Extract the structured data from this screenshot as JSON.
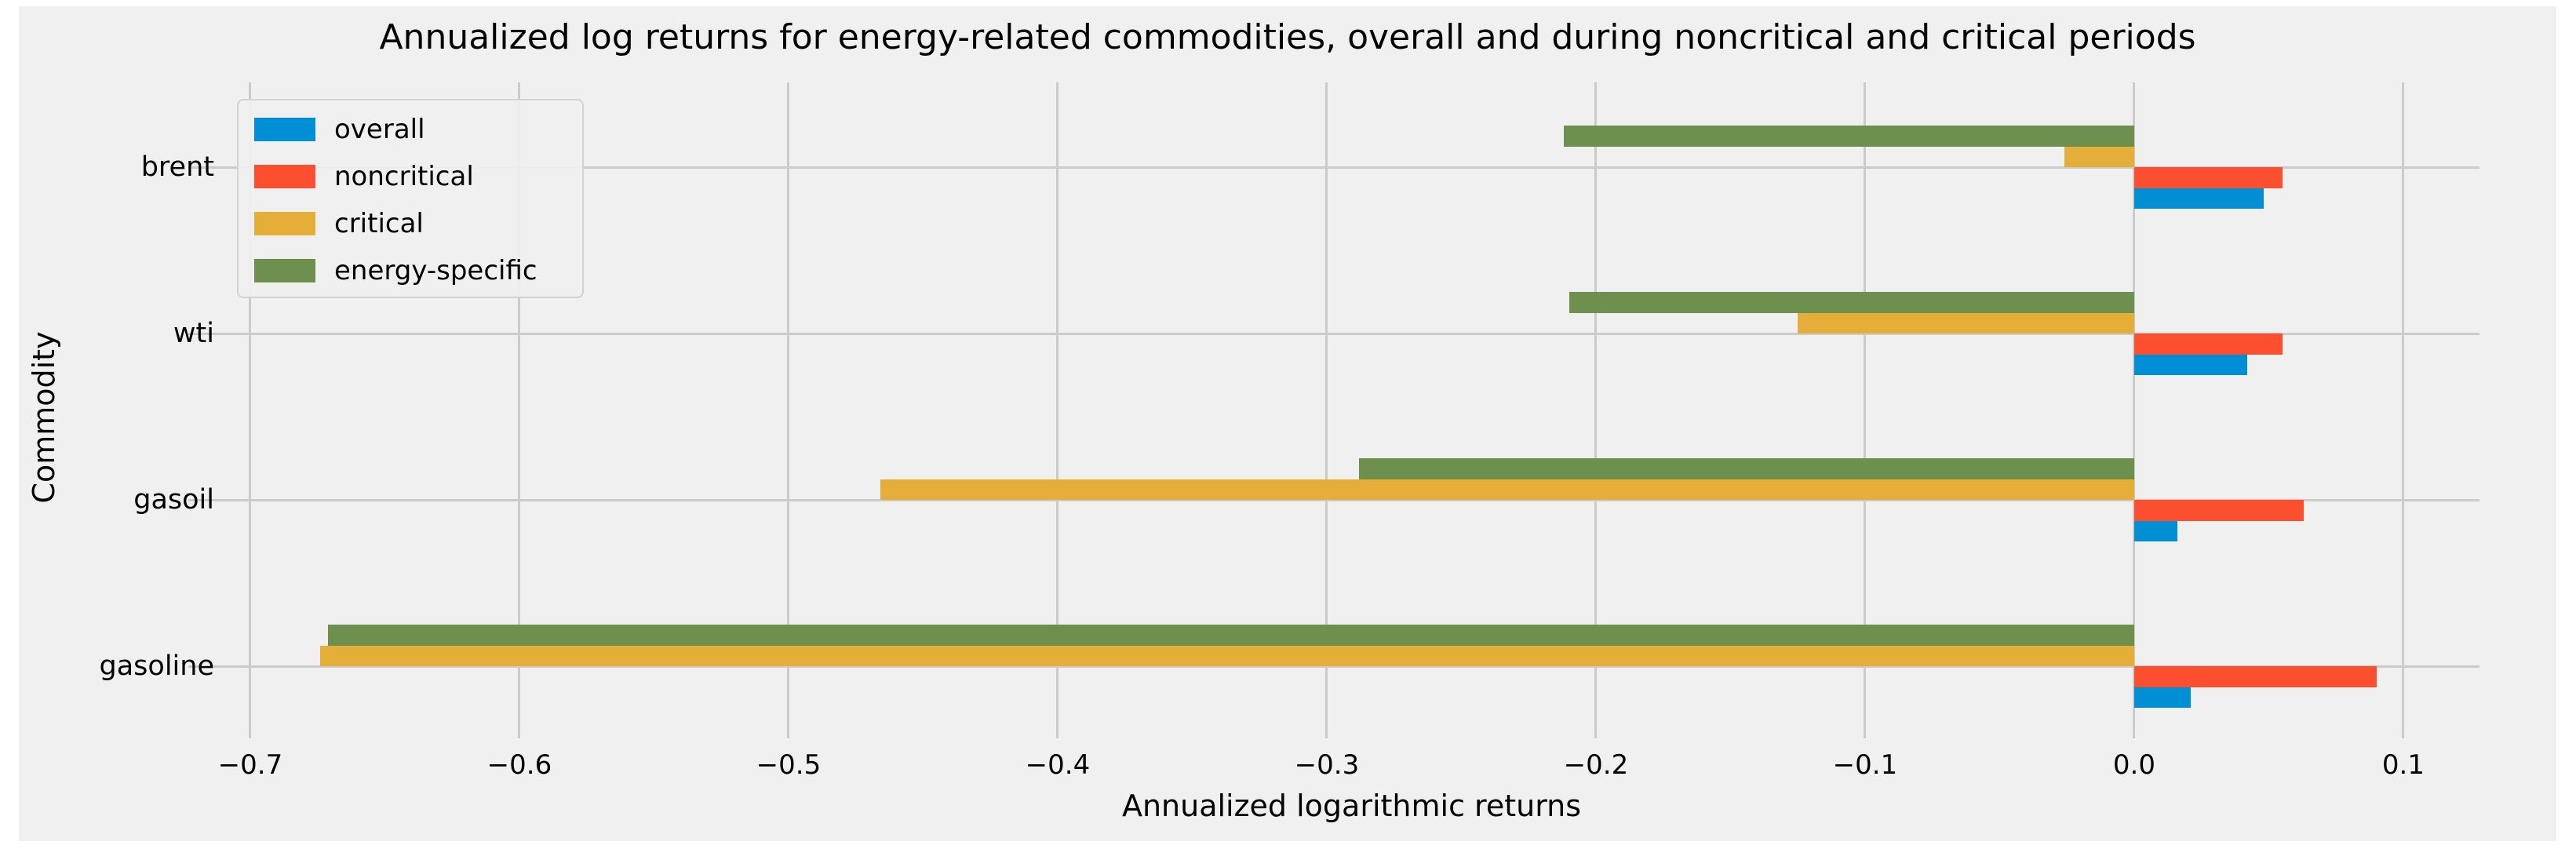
{
  "title": "Annualized log returns for energy-related commodities, overall and during noncritical and critical periods",
  "chart_data": {
    "type": "bar",
    "orientation": "horizontal",
    "title": "Annualized log returns for energy-related commodities, overall and during noncritical and critical periods",
    "xlabel": "Annualized logarithmic returns",
    "ylabel": "Commodity",
    "categories": [
      "brent",
      "wti",
      "gasoil",
      "gasoline"
    ],
    "series": [
      {
        "name": "overall",
        "color": "#008fd5",
        "values": [
          0.048,
          0.042,
          0.016,
          0.021
        ]
      },
      {
        "name": "noncritical",
        "color": "#fc4f30",
        "values": [
          0.055,
          0.055,
          0.063,
          0.09
        ]
      },
      {
        "name": "critical",
        "color": "#e5ae38",
        "values": [
          -0.026,
          -0.125,
          -0.466,
          -0.674
        ]
      },
      {
        "name": "energy-specific",
        "color": "#6d904f",
        "values": [
          -0.212,
          -0.21,
          -0.288,
          -0.671
        ]
      }
    ],
    "xlim": [
      -0.7099,
      0.1283
    ],
    "xticks": [
      -0.7,
      -0.6,
      -0.5,
      -0.4,
      -0.3,
      -0.2,
      -0.1,
      0.0,
      0.1
    ],
    "xtick_labels": [
      "−0.7",
      "−0.6",
      "−0.5",
      "−0.4",
      "−0.3",
      "−0.2",
      "−0.1",
      "0.0",
      "0.1"
    ],
    "grid": true,
    "legend_position": "upper left",
    "background": "#f0f0f0",
    "grid_color": "#cbcbcb"
  }
}
